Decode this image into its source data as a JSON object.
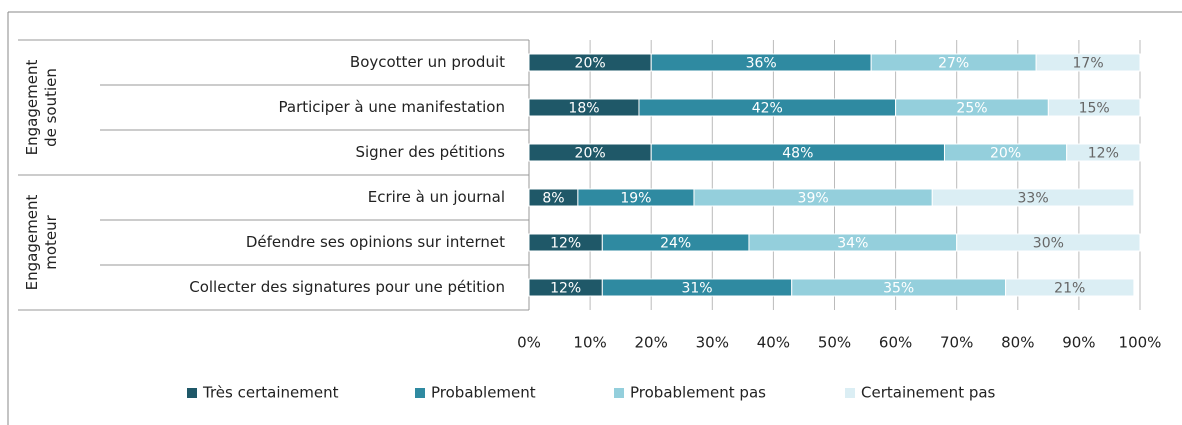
{
  "chart_data": {
    "type": "stacked-bar-horizontal",
    "categories": [
      "Boycotter un produit",
      "Participer à une manifestation",
      "Signer des pétitions",
      "Ecrire à un journal",
      "Défendre ses opinions sur internet",
      "Collecter des signatures pour une pétition"
    ],
    "groups": [
      {
        "lines": [
          "Engagement",
          "de soutien"
        ],
        "size": 3
      },
      {
        "lines": [
          "Engagement",
          "moteur"
        ],
        "size": 3
      }
    ],
    "series": [
      {
        "name": "Très certainement",
        "color": "#1f5868",
        "values": [
          20,
          18,
          20,
          8,
          12,
          12
        ],
        "value_labels": [
          "20%",
          "18%",
          "20%",
          "8%",
          "12%",
          "12%"
        ]
      },
      {
        "name": "Probablement",
        "color": "#2f8aa1",
        "values": [
          36,
          42,
          48,
          19,
          24,
          31
        ],
        "value_labels": [
          "36%",
          "42%",
          "48%",
          "19%",
          "24%",
          "31%"
        ]
      },
      {
        "name": "Probablement pas",
        "color": "#94cfdc",
        "values": [
          27,
          25,
          20,
          39,
          34,
          35
        ],
        "value_labels": [
          "27%",
          "25%",
          "20%",
          "39%",
          "34%",
          "35%"
        ]
      },
      {
        "name": "Certainement pas",
        "color": "#dbeef4",
        "values": [
          17,
          15,
          12,
          33,
          30,
          21
        ],
        "value_labels": [
          "17%",
          "15%",
          "12%",
          "33%",
          "30%",
          "21%"
        ]
      }
    ],
    "xlim": [
      0,
      100
    ],
    "xticks": [
      {
        "value": 0,
        "label": "0%"
      },
      {
        "value": 10,
        "label": "10%"
      },
      {
        "value": 20,
        "label": "20%"
      },
      {
        "value": 30,
        "label": "30%"
      },
      {
        "value": 40,
        "label": "40%"
      },
      {
        "value": 50,
        "label": "50%"
      },
      {
        "value": 60,
        "label": "60%"
      },
      {
        "value": 70,
        "label": "70%"
      },
      {
        "value": 80,
        "label": "80%"
      },
      {
        "value": 90,
        "label": "90%"
      },
      {
        "value": 100,
        "label": "100%"
      }
    ],
    "legend": "bottom"
  }
}
